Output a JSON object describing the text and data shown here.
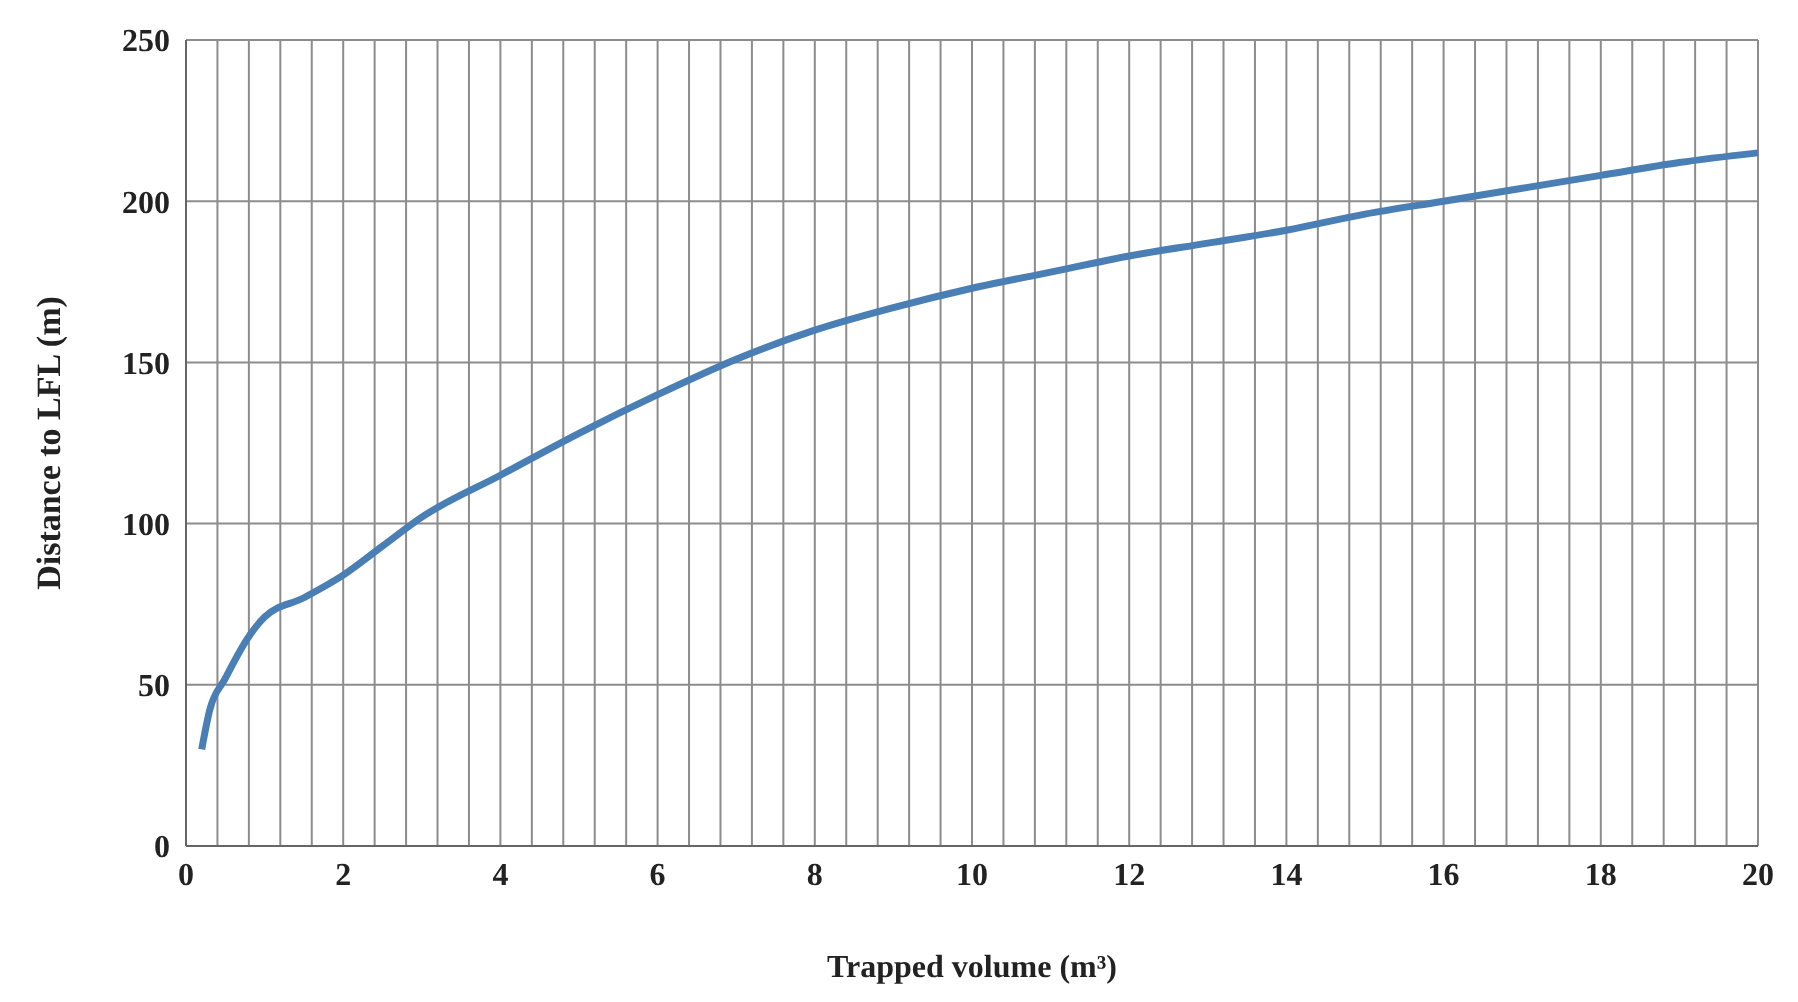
{
  "chart_data": {
    "type": "line",
    "xlabel": "Trapped volume (m³)",
    "ylabel": "Distance to LFL  (m)",
    "series": [
      {
        "color": "#4a7fb5",
        "x": [
          0.2,
          0.3,
          0.5,
          0.8,
          1.0,
          1.5,
          2,
          2.5,
          3,
          4,
          5,
          6,
          7,
          8,
          9,
          10,
          11,
          12,
          13,
          14,
          15,
          16,
          17,
          18,
          19,
          20
        ],
        "values": [
          30,
          42,
          52,
          65,
          71,
          77,
          84,
          93,
          102,
          115,
          128,
          140,
          151,
          160,
          167,
          173,
          178,
          183,
          187,
          191,
          196,
          200,
          204,
          208,
          212,
          215
        ]
      }
    ],
    "xlim": [
      0,
      20
    ],
    "xticks": [
      0,
      {
        "value": 0.4,
        "label": null
      },
      {
        "value": 0.8,
        "label": null
      },
      {
        "value": 1.2,
        "label": null
      },
      {
        "value": 1.6,
        "label": null
      },
      2,
      {
        "value": 2.4,
        "label": null
      },
      {
        "value": 2.8,
        "label": null
      },
      {
        "value": 3.2,
        "label": null
      },
      {
        "value": 3.6,
        "label": null
      },
      4,
      {
        "value": 4.4,
        "label": null
      },
      {
        "value": 4.8,
        "label": null
      },
      {
        "value": 5.2,
        "label": null
      },
      {
        "value": 5.6,
        "label": null
      },
      6,
      {
        "value": 6.4,
        "label": null
      },
      {
        "value": 6.8,
        "label": null
      },
      {
        "value": 7.2,
        "label": null
      },
      {
        "value": 7.6,
        "label": null
      },
      8,
      {
        "value": 8.4,
        "label": null
      },
      {
        "value": 8.8,
        "label": null
      },
      {
        "value": 9.2,
        "label": null
      },
      {
        "value": 9.6,
        "label": null
      },
      10,
      {
        "value": 10.4,
        "label": null
      },
      {
        "value": 10.8,
        "label": null
      },
      {
        "value": 11.2,
        "label": null
      },
      {
        "value": 11.6,
        "label": null
      },
      12,
      {
        "value": 12.4,
        "label": null
      },
      {
        "value": 12.8,
        "label": null
      },
      {
        "value": 13.2,
        "label": null
      },
      {
        "value": 13.6,
        "label": null
      },
      14,
      {
        "value": 14.4,
        "label": null
      },
      {
        "value": 14.8,
        "label": null
      },
      {
        "value": 15.2,
        "label": null
      },
      {
        "value": 15.6,
        "label": null
      },
      16,
      {
        "value": 16.4,
        "label": null
      },
      {
        "value": 16.8,
        "label": null
      },
      {
        "value": 17.2,
        "label": null
      },
      {
        "value": 17.6,
        "label": null
      },
      18,
      {
        "value": 18.4,
        "label": null
      },
      {
        "value": 18.8,
        "label": null
      },
      {
        "value": 19.2,
        "label": null
      },
      {
        "value": 19.6,
        "label": null
      },
      20
    ],
    "ylim": [
      0,
      250
    ],
    "yticks": [
      0,
      50,
      100,
      150,
      200,
      250
    ],
    "grid": true,
    "marker": "none",
    "line_style": "solid"
  }
}
